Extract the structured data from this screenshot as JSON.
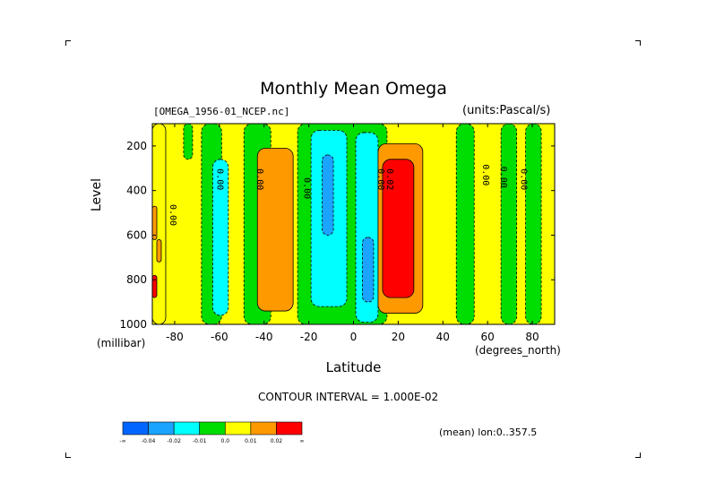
{
  "chart_data": {
    "type": "heatmap",
    "title": "Monthly Mean Omega",
    "subtitle_left": "[OMEGA_1956-01_NCEP.nc]",
    "subtitle_right": "(units:Pascal/s)",
    "xlabel": "Latitude",
    "xlabel_units": "(degrees_north)",
    "ylabel": "Level",
    "ylabel_units": "(millibar)",
    "xlim": [
      -90,
      90
    ],
    "ylim": [
      1000,
      100
    ],
    "xticks": [
      -80,
      -60,
      -40,
      -20,
      0,
      20,
      40,
      60,
      80
    ],
    "xtick_labels": [
      "-80",
      "-60",
      "-40",
      "-20",
      "0",
      "20",
      "40",
      "60",
      "80"
    ],
    "yticks": [
      200,
      400,
      600,
      800,
      1000
    ],
    "ytick_labels": [
      "200",
      "400",
      "600",
      "800",
      "1000"
    ],
    "y_inverted": true,
    "contour_interval_text": "CONTOUR INTERVAL = 1.000E-02",
    "mean_text": "(mean) lon:0..357.5",
    "colorbar": {
      "colors": [
        "#0066ff",
        "#1aa3ff",
        "#00ffff",
        "#00dd00",
        "#ffff00",
        "#ff9900",
        "#ff0000"
      ],
      "labels": [
        "-∞",
        "-0.04",
        "-0.02",
        "-0.01",
        "0.0",
        "0.01",
        "0.02",
        "∞"
      ]
    },
    "background_level": "0.0 to 0.01",
    "regions": [
      {
        "x": [
          -90,
          -84
        ],
        "y": [
          100,
          1000
        ],
        "level": "0.0 to 0.01"
      },
      {
        "x": [
          -90,
          -88
        ],
        "y": [
          470,
          620
        ],
        "level": "0.01 to 0.02"
      },
      {
        "x": [
          -88,
          -86
        ],
        "y": [
          620,
          720
        ],
        "level": "0.01 to 0.02"
      },
      {
        "x": [
          -90,
          -88
        ],
        "y": [
          780,
          880
        ],
        "level": "> 0.02"
      },
      {
        "x": [
          -76,
          -72
        ],
        "y": [
          100,
          260
        ],
        "level": "-0.01 to 0.0"
      },
      {
        "x": [
          -68,
          -59
        ],
        "y": [
          100,
          1000
        ],
        "level": "-0.01 to 0.0"
      },
      {
        "x": [
          -63,
          -56
        ],
        "y": [
          260,
          960
        ],
        "level": "-0.02 to -0.01"
      },
      {
        "x": [
          -49,
          -37
        ],
        "y": [
          100,
          1000
        ],
        "level": "-0.01 to 0.0"
      },
      {
        "x": [
          -43,
          -27
        ],
        "y": [
          210,
          940
        ],
        "level": "0.01 to 0.02"
      },
      {
        "x": [
          -25,
          15
        ],
        "y": [
          100,
          1000
        ],
        "level": "-0.01 to 0.0"
      },
      {
        "x": [
          -19,
          -3
        ],
        "y": [
          130,
          920
        ],
        "level": "-0.02 to -0.01"
      },
      {
        "x": [
          -14,
          -9
        ],
        "y": [
          240,
          600
        ],
        "level": "-0.04 to -0.02"
      },
      {
        "x": [
          1,
          11
        ],
        "y": [
          140,
          990
        ],
        "level": "-0.02 to -0.01"
      },
      {
        "x": [
          4,
          9
        ],
        "y": [
          610,
          900
        ],
        "level": "-0.04 to -0.02"
      },
      {
        "x": [
          11,
          31
        ],
        "y": [
          190,
          950
        ],
        "level": "0.01 to 0.02"
      },
      {
        "x": [
          13,
          27
        ],
        "y": [
          260,
          880
        ],
        "level": "> 0.02"
      },
      {
        "x": [
          46,
          54
        ],
        "y": [
          100,
          1000
        ],
        "level": "-0.01 to 0.0"
      },
      {
        "x": [
          66,
          73
        ],
        "y": [
          100,
          1000
        ],
        "level": "-0.01 to 0.0"
      },
      {
        "x": [
          77,
          84
        ],
        "y": [
          100,
          1000
        ],
        "level": "-0.01 to 0.0"
      }
    ],
    "contour_labels": [
      {
        "text": "0.00",
        "x": -82,
        "y": 510
      },
      {
        "text": "0.00",
        "x": -61,
        "y": 350
      },
      {
        "text": "0.00",
        "x": -43,
        "y": 350
      },
      {
        "text": "0.00",
        "x": -22,
        "y": 390
      },
      {
        "text": "0.00",
        "x": 11,
        "y": 350
      },
      {
        "text": "0.02",
        "x": 15,
        "y": 350
      },
      {
        "text": "0.00",
        "x": 58,
        "y": 330
      },
      {
        "text": "0.00",
        "x": 66,
        "y": 340
      },
      {
        "text": "0.00",
        "x": 75,
        "y": 350
      }
    ]
  }
}
